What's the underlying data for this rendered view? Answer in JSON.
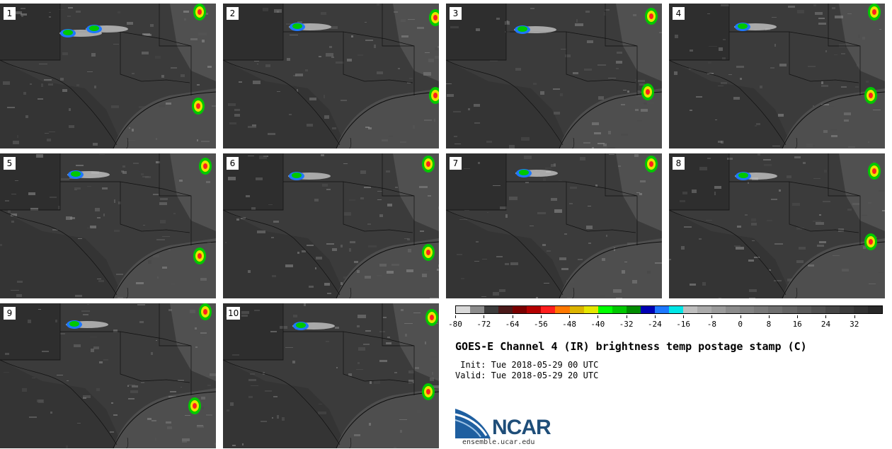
{
  "panels": [
    {
      "label": "1"
    },
    {
      "label": "2"
    },
    {
      "label": "3"
    },
    {
      "label": "4"
    },
    {
      "label": "5"
    },
    {
      "label": "6"
    },
    {
      "label": "7"
    },
    {
      "label": "8"
    },
    {
      "label": "9"
    },
    {
      "label": "10"
    }
  ],
  "colorbar": {
    "min": -80,
    "max": 40,
    "step": 4,
    "colors": [
      "#d9d9d9",
      "#8c8c8c",
      "#3c3c3c",
      "#4a1a1a",
      "#7a0000",
      "#b40000",
      "#ff1e1e",
      "#ff7800",
      "#dcb400",
      "#e6e600",
      "#00ff00",
      "#00c800",
      "#008c00",
      "#0000b4",
      "#1e78ff",
      "#00e6e6",
      "#bebebe",
      "#aaaaaa",
      "#9b9b9b",
      "#8c8c8c",
      "#828282",
      "#787878",
      "#6e6e6e",
      "#646464",
      "#5a5a5a",
      "#505050",
      "#464646",
      "#3c3c3c",
      "#323232",
      "#282828"
    ],
    "tick_labels": [
      "-80",
      "-72",
      "-64",
      "-56",
      "-48",
      "-40",
      "-32",
      "-24",
      "-16",
      "-8",
      "0",
      "8",
      "16",
      "24",
      "32"
    ]
  },
  "title": "GOES-E Channel 4 (IR) brightness temp postage stamp (C)",
  "init": " Init: Tue 2018-05-29 00 UTC",
  "valid": "Valid: Tue 2018-05-29 20 UTC",
  "logo_text": "NCAR",
  "site": "ensemble.ucar.edu"
}
